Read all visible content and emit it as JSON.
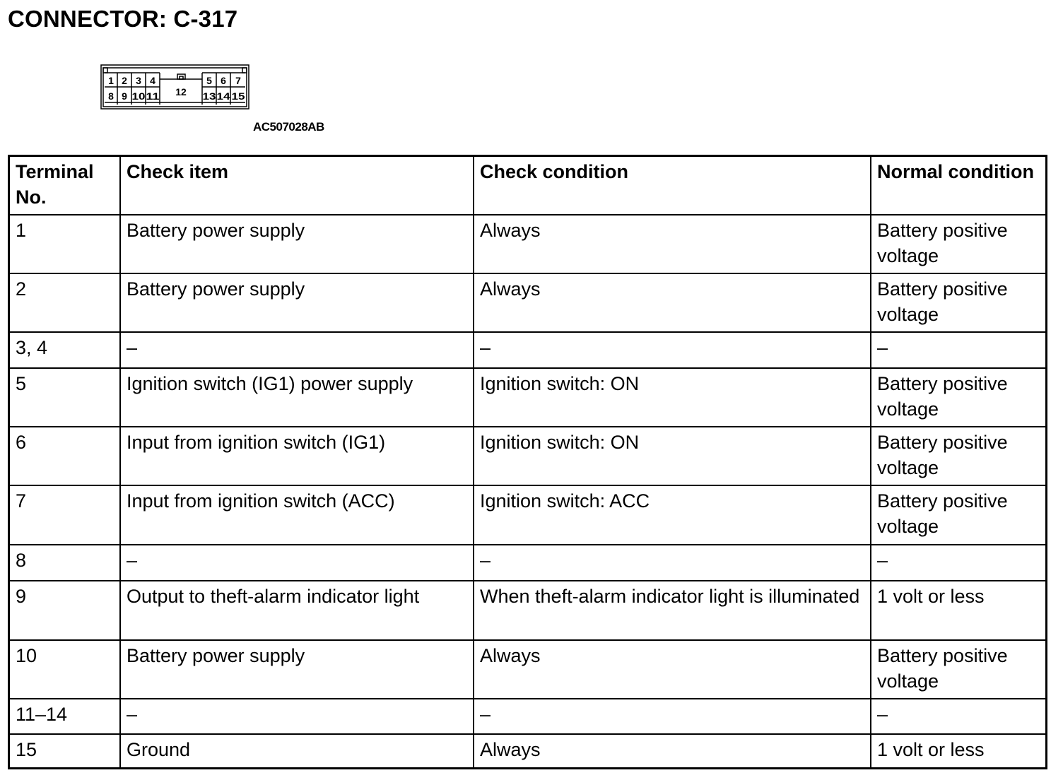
{
  "title": "CONNECTOR: C-317",
  "connector": {
    "figure_code": "AC507028AB",
    "top_row": [
      "1",
      "2",
      "3",
      "4",
      "5",
      "6",
      "7"
    ],
    "bottom_row": [
      "8",
      "9",
      "10",
      "11",
      "13",
      "14",
      "15"
    ],
    "center": "12"
  },
  "table": {
    "headers": [
      "Terminal No.",
      "Check item",
      "Check condition",
      "Normal condition"
    ],
    "rows": [
      [
        "1",
        "Battery power supply",
        "Always",
        "Battery positive voltage"
      ],
      [
        "2",
        "Battery power supply",
        "Always",
        "Battery positive voltage"
      ],
      [
        "3, 4",
        "–",
        "–",
        "–"
      ],
      [
        "5",
        "Ignition switch (IG1) power supply",
        "Ignition switch: ON",
        "Battery positive voltage"
      ],
      [
        "6",
        "Input from ignition switch (IG1)",
        "Ignition switch: ON",
        "Battery positive voltage"
      ],
      [
        "7",
        "Input from ignition switch (ACC)",
        "Ignition switch: ACC",
        "Battery positive voltage"
      ],
      [
        "8",
        "–",
        "–",
        "–"
      ],
      [
        "9",
        "Output to theft-alarm indicator light",
        "When theft-alarm indicator light is illuminated",
        "1 volt or less"
      ],
      [
        "10",
        "Battery power supply",
        "Always",
        "Battery positive voltage"
      ],
      [
        "11–14",
        "–",
        "–",
        "–"
      ],
      [
        "15",
        "Ground",
        "Always",
        "1 volt or less"
      ]
    ]
  }
}
